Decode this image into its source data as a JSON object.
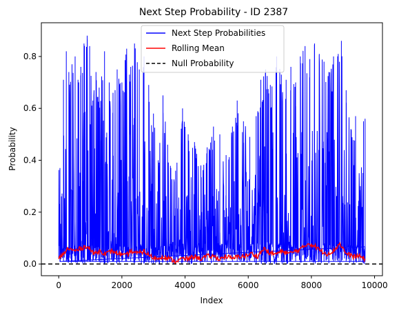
{
  "chart_data": {
    "type": "line",
    "title": "Next Step Probability - ID 2387",
    "xlabel": "Index",
    "ylabel": "Probability",
    "xlim": [
      -550,
      10250
    ],
    "ylim": [
      -0.045,
      0.93
    ],
    "x_ticks": [
      0,
      2000,
      4000,
      6000,
      8000,
      10000
    ],
    "x_tick_labels": [
      "0",
      "2000",
      "4000",
      "6000",
      "8000",
      "10000"
    ],
    "y_ticks": [
      0.0,
      0.2,
      0.4,
      0.6,
      0.8
    ],
    "y_tick_labels": [
      "0.0",
      "0.2",
      "0.4",
      "0.6",
      "0.8"
    ],
    "grid": false,
    "legend_position": "upper-center",
    "series": [
      {
        "name": "Next Step Probabilities",
        "color": "#0000ff",
        "style": "solid",
        "x_range": [
          0,
          9700
        ],
        "peaks": [
          {
            "x": 40,
            "y": 0.37
          },
          {
            "x": 150,
            "y": 0.71
          },
          {
            "x": 240,
            "y": 0.82
          },
          {
            "x": 320,
            "y": 0.74
          },
          {
            "x": 420,
            "y": 0.77
          },
          {
            "x": 520,
            "y": 0.8
          },
          {
            "x": 610,
            "y": 0.71
          },
          {
            "x": 700,
            "y": 0.76
          },
          {
            "x": 800,
            "y": 0.85
          },
          {
            "x": 900,
            "y": 0.88
          },
          {
            "x": 980,
            "y": 0.84
          },
          {
            "x": 1080,
            "y": 0.63
          },
          {
            "x": 1180,
            "y": 0.74
          },
          {
            "x": 1280,
            "y": 0.68
          },
          {
            "x": 1450,
            "y": 0.82
          },
          {
            "x": 1600,
            "y": 0.7
          },
          {
            "x": 1720,
            "y": 0.66
          },
          {
            "x": 1850,
            "y": 0.75
          },
          {
            "x": 2000,
            "y": 0.7
          },
          {
            "x": 2150,
            "y": 0.83
          },
          {
            "x": 2280,
            "y": 0.76
          },
          {
            "x": 2400,
            "y": 0.85
          },
          {
            "x": 2550,
            "y": 0.75
          },
          {
            "x": 2700,
            "y": 0.8
          },
          {
            "x": 2850,
            "y": 0.69
          },
          {
            "x": 3000,
            "y": 0.58
          },
          {
            "x": 3150,
            "y": 0.4
          },
          {
            "x": 3300,
            "y": 0.65
          },
          {
            "x": 3450,
            "y": 0.46
          },
          {
            "x": 3550,
            "y": 0.37
          },
          {
            "x": 3700,
            "y": 0.36
          },
          {
            "x": 3920,
            "y": 0.6
          },
          {
            "x": 4100,
            "y": 0.5
          },
          {
            "x": 4300,
            "y": 0.47
          },
          {
            "x": 4500,
            "y": 0.38
          },
          {
            "x": 4700,
            "y": 0.45
          },
          {
            "x": 4900,
            "y": 0.53
          },
          {
            "x": 5100,
            "y": 0.5
          },
          {
            "x": 5300,
            "y": 0.42
          },
          {
            "x": 5500,
            "y": 0.53
          },
          {
            "x": 5650,
            "y": 0.63
          },
          {
            "x": 5850,
            "y": 0.55
          },
          {
            "x": 6050,
            "y": 0.49
          },
          {
            "x": 6250,
            "y": 0.57
          },
          {
            "x": 6400,
            "y": 0.71
          },
          {
            "x": 6550,
            "y": 0.75
          },
          {
            "x": 6700,
            "y": 0.69
          },
          {
            "x": 6900,
            "y": 0.8
          },
          {
            "x": 7050,
            "y": 0.73
          },
          {
            "x": 7200,
            "y": 0.71
          },
          {
            "x": 7350,
            "y": 0.76
          },
          {
            "x": 7500,
            "y": 0.7
          },
          {
            "x": 7650,
            "y": 0.8
          },
          {
            "x": 7800,
            "y": 0.84
          },
          {
            "x": 7950,
            "y": 0.79
          },
          {
            "x": 8100,
            "y": 0.85
          },
          {
            "x": 8250,
            "y": 0.81
          },
          {
            "x": 8400,
            "y": 0.78
          },
          {
            "x": 8550,
            "y": 0.74
          },
          {
            "x": 8700,
            "y": 0.8
          },
          {
            "x": 8850,
            "y": 0.81
          },
          {
            "x": 8950,
            "y": 0.86
          },
          {
            "x": 9100,
            "y": 0.67
          },
          {
            "x": 9250,
            "y": 0.52
          },
          {
            "x": 9400,
            "y": 0.57
          },
          {
            "x": 9550,
            "y": 0.3
          },
          {
            "x": 9650,
            "y": 0.55
          },
          {
            "x": 9700,
            "y": 0.56
          }
        ]
      },
      {
        "name": "Rolling Mean",
        "color": "#ff0000",
        "style": "solid",
        "points": [
          {
            "x": 0,
            "y": 0.02
          },
          {
            "x": 150,
            "y": 0.04
          },
          {
            "x": 300,
            "y": 0.06
          },
          {
            "x": 500,
            "y": 0.05
          },
          {
            "x": 700,
            "y": 0.06
          },
          {
            "x": 900,
            "y": 0.07
          },
          {
            "x": 1100,
            "y": 0.04
          },
          {
            "x": 1300,
            "y": 0.05
          },
          {
            "x": 1500,
            "y": 0.04
          },
          {
            "x": 1700,
            "y": 0.05
          },
          {
            "x": 1900,
            "y": 0.04
          },
          {
            "x": 2100,
            "y": 0.03
          },
          {
            "x": 2300,
            "y": 0.05
          },
          {
            "x": 2500,
            "y": 0.04
          },
          {
            "x": 2700,
            "y": 0.05
          },
          {
            "x": 2900,
            "y": 0.03
          },
          {
            "x": 3100,
            "y": 0.02
          },
          {
            "x": 3300,
            "y": 0.03
          },
          {
            "x": 3500,
            "y": 0.02
          },
          {
            "x": 3700,
            "y": 0.01
          },
          {
            "x": 3900,
            "y": 0.02
          },
          {
            "x": 4100,
            "y": 0.02
          },
          {
            "x": 4300,
            "y": 0.03
          },
          {
            "x": 4500,
            "y": 0.02
          },
          {
            "x": 4700,
            "y": 0.03
          },
          {
            "x": 4900,
            "y": 0.03
          },
          {
            "x": 5100,
            "y": 0.02
          },
          {
            "x": 5300,
            "y": 0.03
          },
          {
            "x": 5500,
            "y": 0.02
          },
          {
            "x": 5700,
            "y": 0.03
          },
          {
            "x": 5900,
            "y": 0.03
          },
          {
            "x": 6100,
            "y": 0.04
          },
          {
            "x": 6300,
            "y": 0.03
          },
          {
            "x": 6500,
            "y": 0.06
          },
          {
            "x": 6700,
            "y": 0.04
          },
          {
            "x": 6900,
            "y": 0.04
          },
          {
            "x": 7100,
            "y": 0.05
          },
          {
            "x": 7300,
            "y": 0.04
          },
          {
            "x": 7500,
            "y": 0.05
          },
          {
            "x": 7700,
            "y": 0.06
          },
          {
            "x": 7900,
            "y": 0.08
          },
          {
            "x": 8100,
            "y": 0.07
          },
          {
            "x": 8300,
            "y": 0.05
          },
          {
            "x": 8500,
            "y": 0.04
          },
          {
            "x": 8700,
            "y": 0.05
          },
          {
            "x": 8900,
            "y": 0.08
          },
          {
            "x": 9100,
            "y": 0.04
          },
          {
            "x": 9300,
            "y": 0.03
          },
          {
            "x": 9500,
            "y": 0.03
          },
          {
            "x": 9700,
            "y": 0.02
          }
        ]
      },
      {
        "name": "Null Probability",
        "color": "#000000",
        "style": "dashed",
        "y": 0.0
      }
    ]
  }
}
